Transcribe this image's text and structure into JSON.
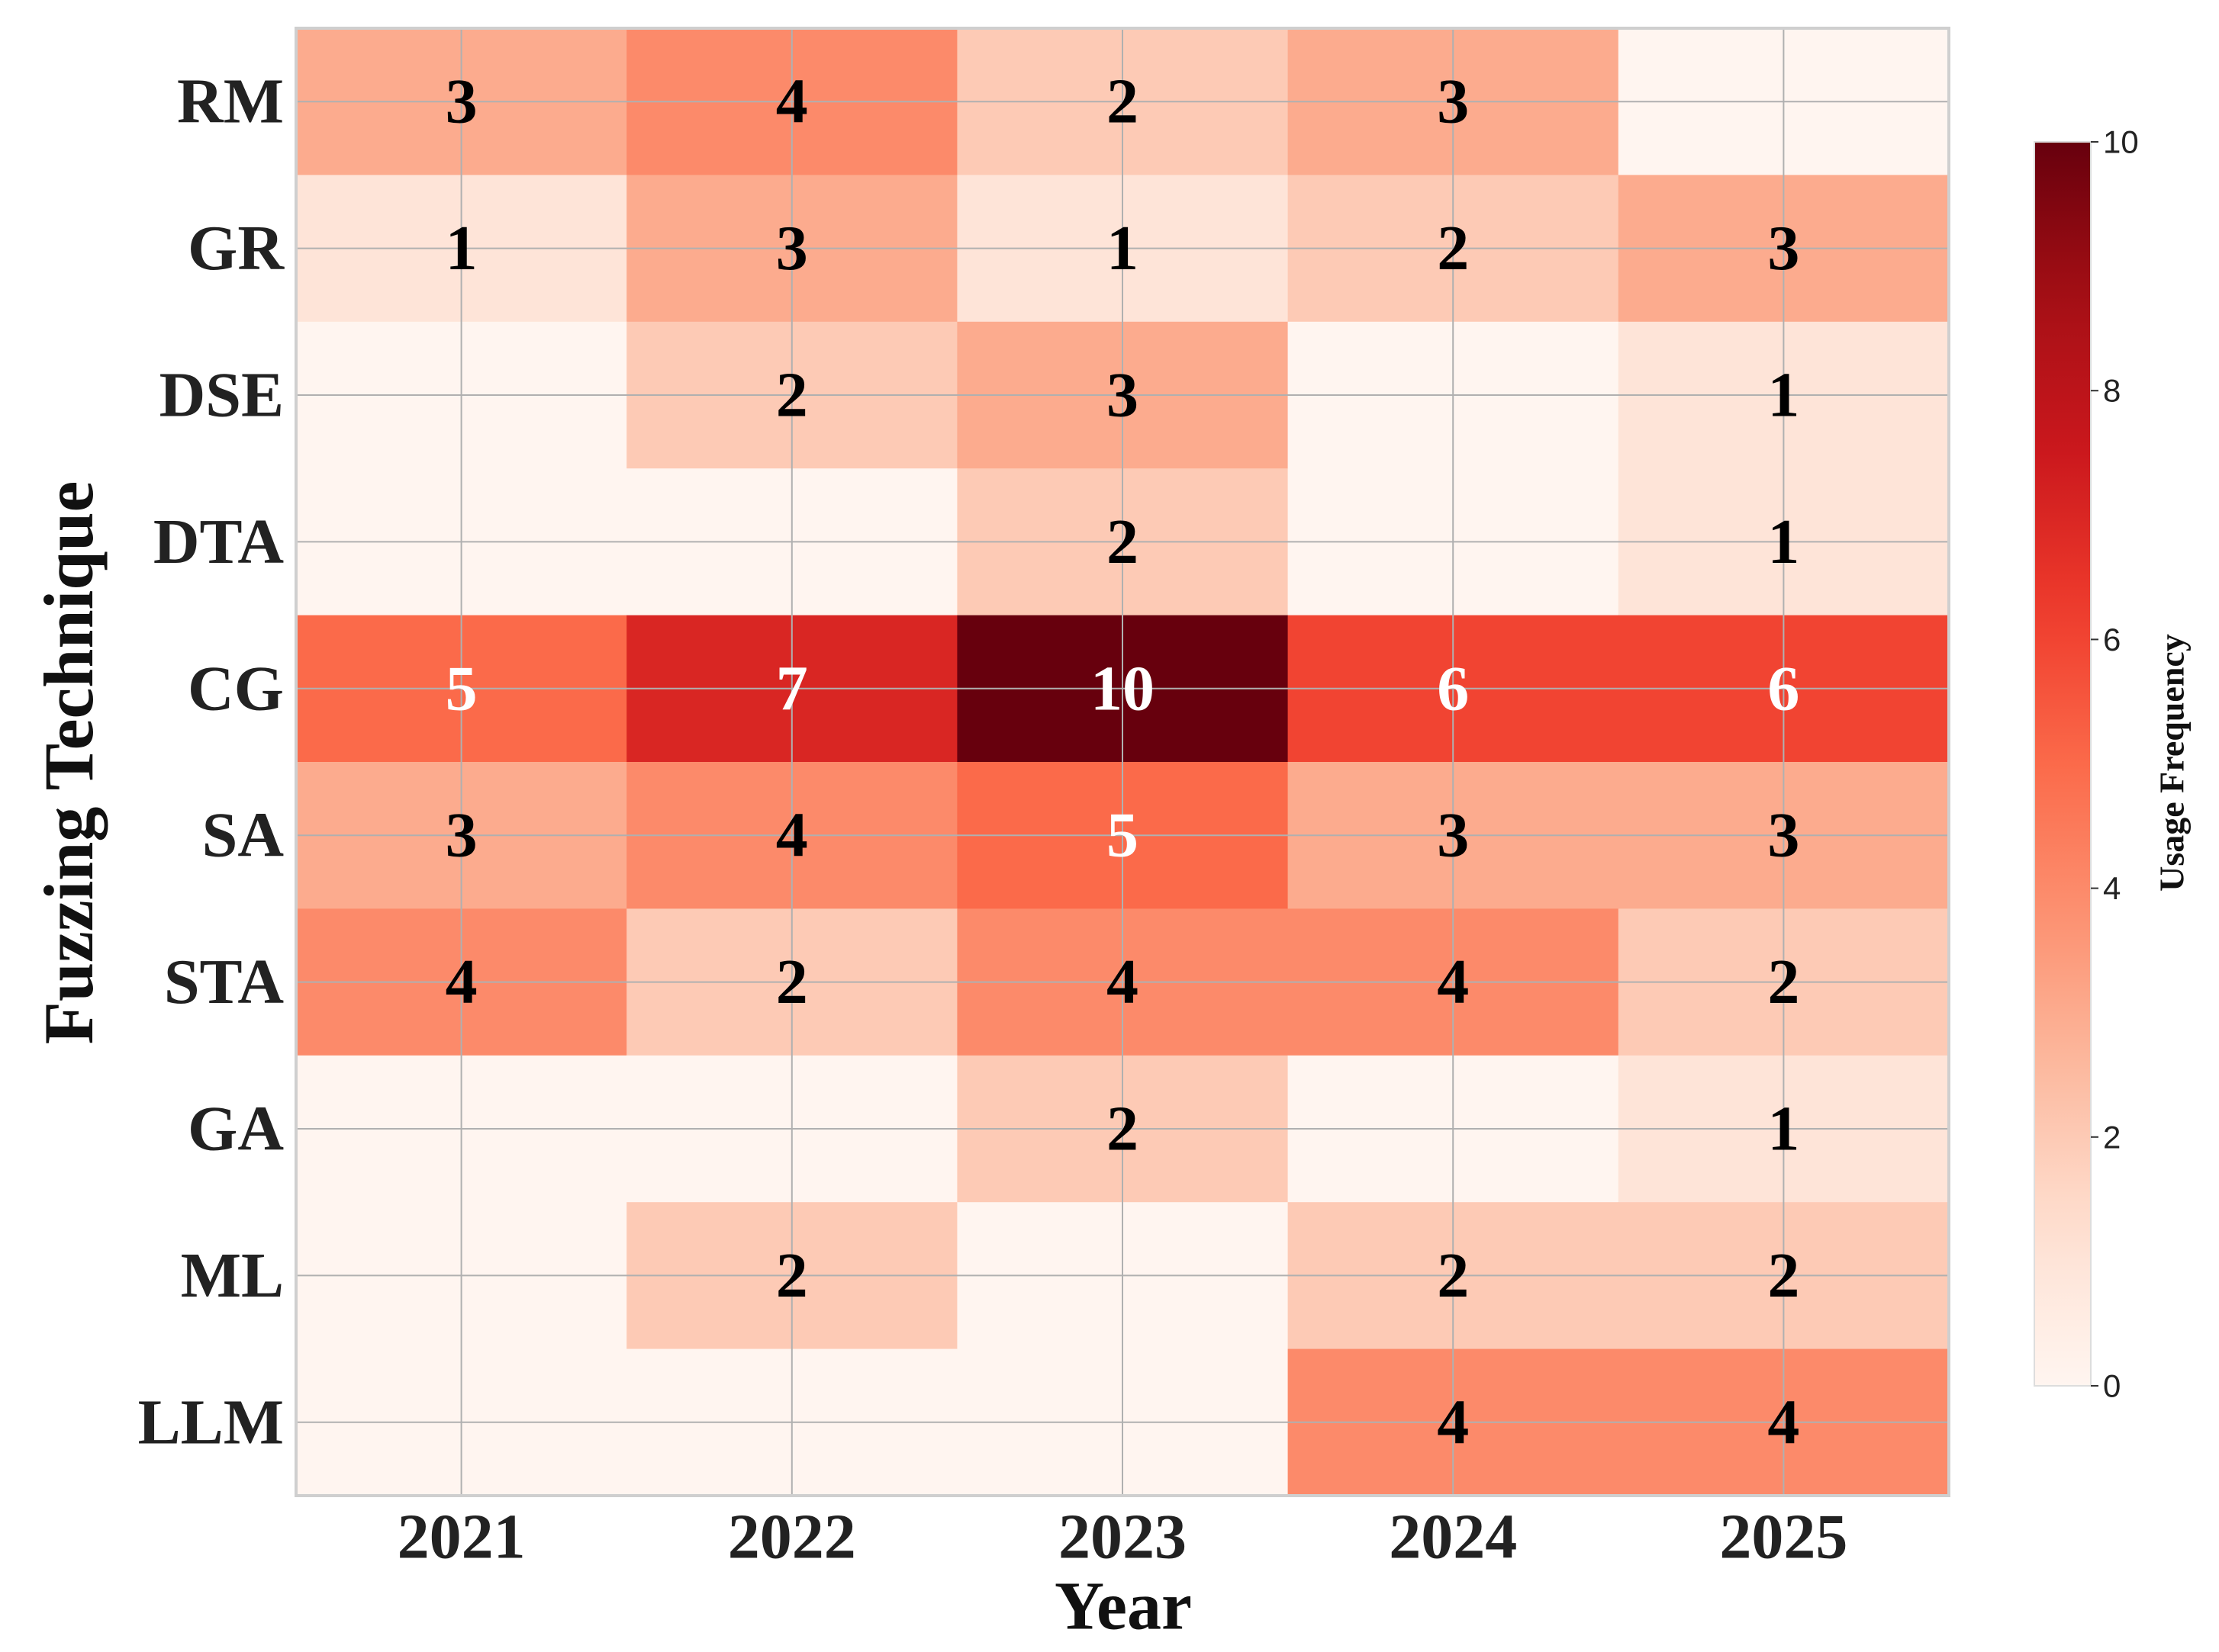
{
  "chart_data": {
    "type": "heatmap",
    "x_label": "Year",
    "y_label": "Fuzzing Technique",
    "categories": [
      "2021",
      "2022",
      "2023",
      "2024",
      "2025"
    ],
    "rows": [
      "RM",
      "GR",
      "DSE",
      "DTA",
      "CG",
      "SA",
      "STA",
      "GA",
      "ML",
      "LLM"
    ],
    "values": [
      [
        3,
        4,
        2,
        3,
        0
      ],
      [
        1,
        3,
        1,
        2,
        3
      ],
      [
        0,
        2,
        3,
        0,
        1
      ],
      [
        0,
        0,
        2,
        0,
        1
      ],
      [
        5,
        7,
        10,
        6,
        6
      ],
      [
        3,
        4,
        5,
        3,
        3
      ],
      [
        4,
        2,
        4,
        4,
        2
      ],
      [
        0,
        0,
        2,
        0,
        1
      ],
      [
        0,
        2,
        0,
        2,
        2
      ],
      [
        0,
        0,
        0,
        4,
        4
      ]
    ],
    "colormap": "Reds",
    "colorbar_label": "Usage Frequency",
    "clim": [
      0,
      10
    ],
    "cticks": [
      0,
      2,
      4,
      6,
      8,
      10
    ],
    "grid": true
  }
}
